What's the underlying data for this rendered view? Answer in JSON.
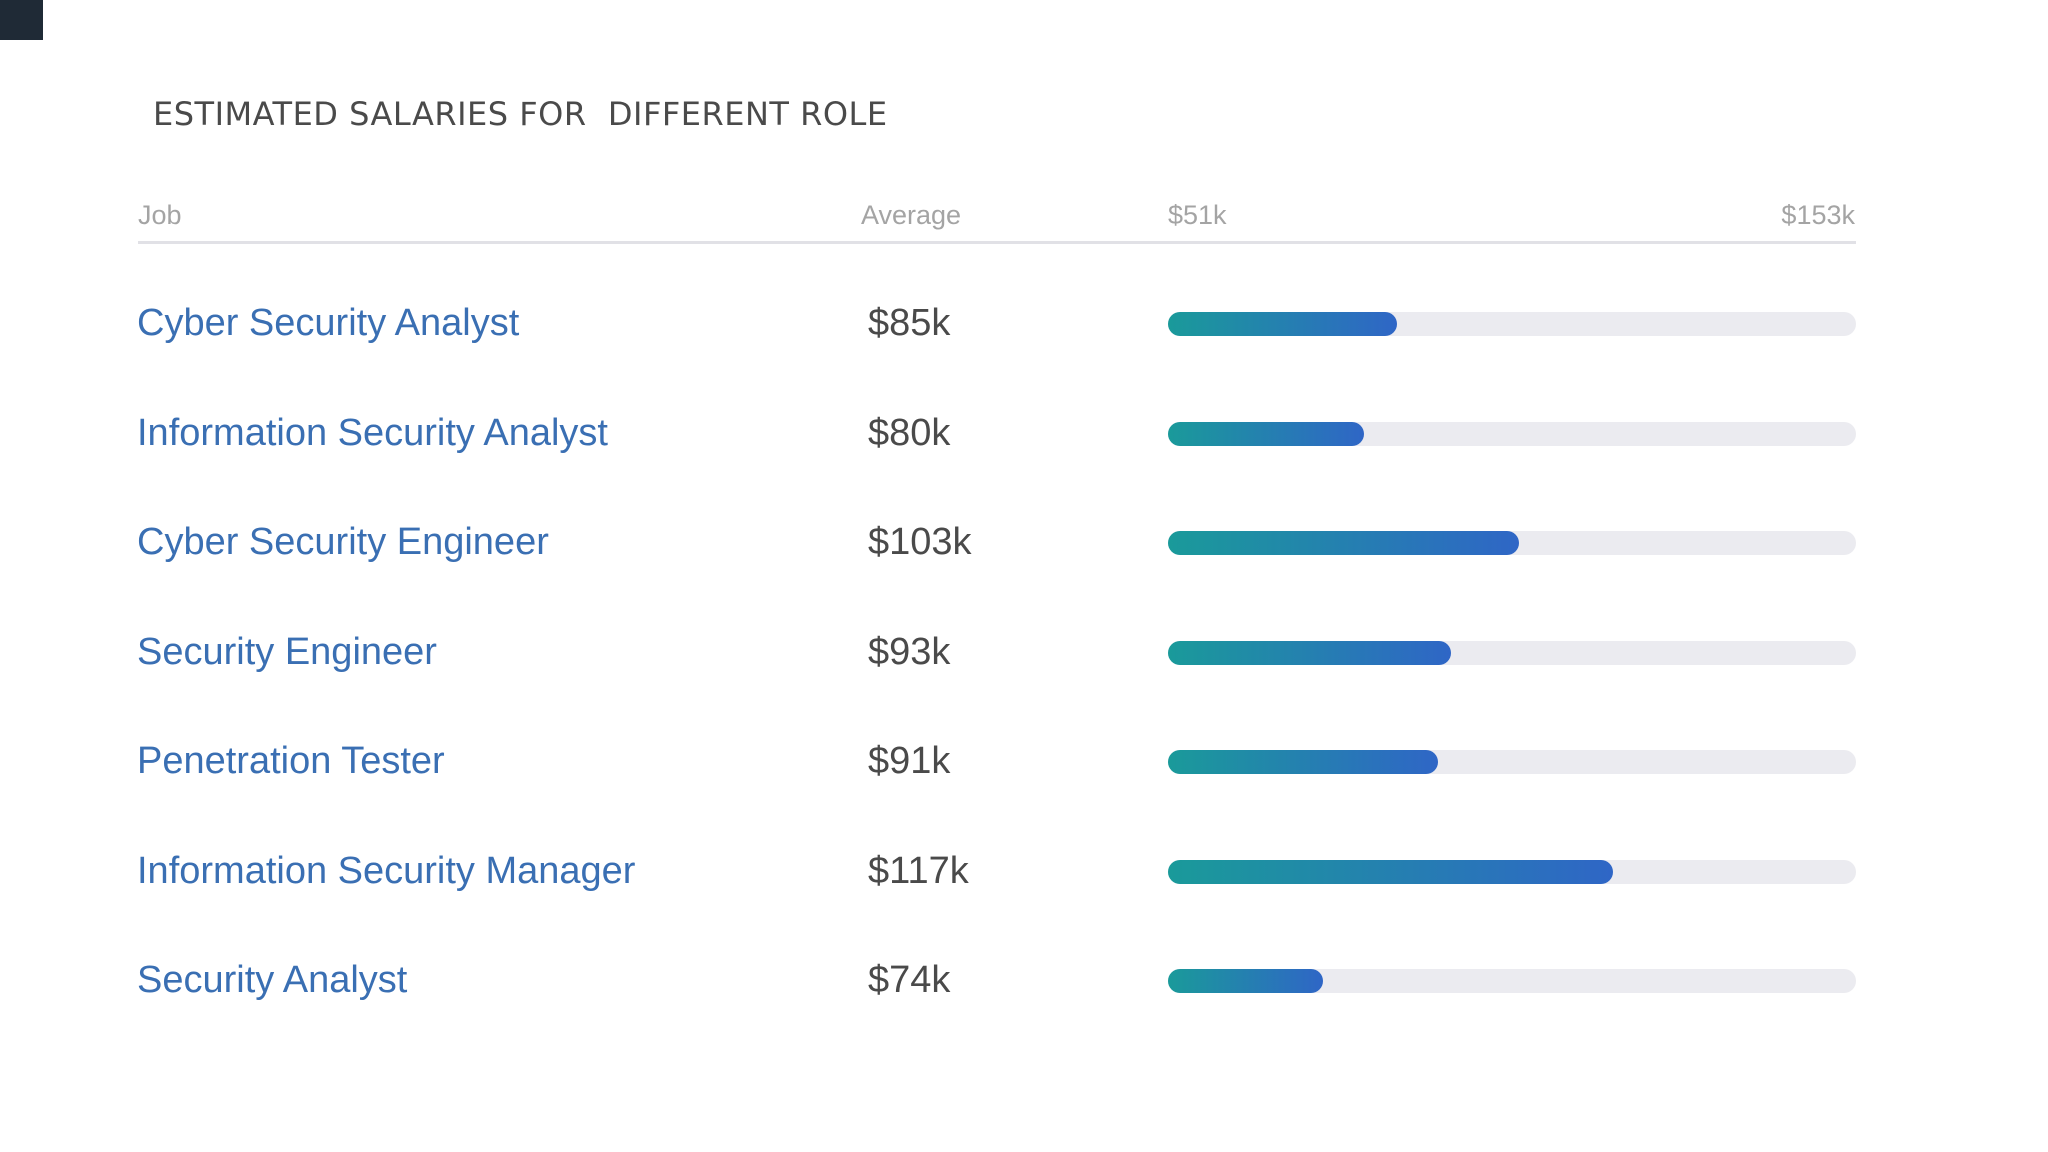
{
  "page": {
    "title": "ESTIMATED SALARIES FOR  DIFFERENT ROLE"
  },
  "chart_data": {
    "type": "bar",
    "orientation": "horizontal",
    "title": "ESTIMATED SALARIES FOR  DIFFERENT ROLE",
    "columns": {
      "job": "Job",
      "average": "Average",
      "range_min": "$51k",
      "range_max": "$153k"
    },
    "xlim": [
      51,
      153
    ],
    "unit": "$k",
    "colors": {
      "gradient_start": "#1a9a9a",
      "gradient_end": "#2f66c6",
      "track": "#ebebf0",
      "job_text": "#3a6fb3"
    },
    "rows": [
      {
        "job": "Cyber Security Analyst",
        "average_label": "$85k",
        "value": 85
      },
      {
        "job": "Information Security Analyst",
        "average_label": "$80k",
        "value": 80
      },
      {
        "job": "Cyber Security Engineer",
        "average_label": "$103k",
        "value": 103
      },
      {
        "job": "Security Engineer",
        "average_label": "$93k",
        "value": 93
      },
      {
        "job": "Penetration Tester",
        "average_label": "$91k",
        "value": 91
      },
      {
        "job": "Information Security Manager",
        "average_label": "$117k",
        "value": 117
      },
      {
        "job": "Security Analyst",
        "average_label": "$74k",
        "value": 74
      }
    ]
  }
}
